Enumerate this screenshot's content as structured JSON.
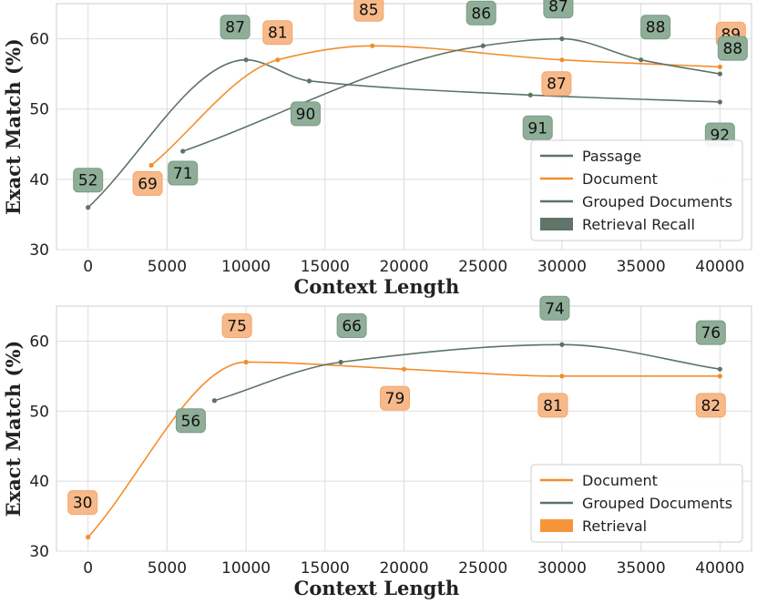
{
  "chart_data": [
    {
      "type": "line",
      "xlabel": "Context Length",
      "ylabel": "Exact Match (%)",
      "xlim": [
        -2000,
        42000
      ],
      "ylim": [
        30,
        65
      ],
      "xticks": [
        0,
        5000,
        10000,
        15000,
        20000,
        25000,
        30000,
        35000,
        40000
      ],
      "yticks": [
        30,
        40,
        50,
        60
      ],
      "grid": true,
      "legend_position": "bottom-right",
      "series": [
        {
          "name": "Passage",
          "color": "#5b7466",
          "x": [
            0,
            10000,
            14000,
            28000,
            40000
          ],
          "y": [
            36,
            57,
            54,
            52,
            51
          ],
          "recall": [
            52,
            87,
            90,
            91,
            92
          ]
        },
        {
          "name": "Document",
          "color": "#f28e2b",
          "x": [
            4000,
            12000,
            18000,
            30000,
            40000
          ],
          "y": [
            42,
            57,
            59,
            57,
            56
          ],
          "recall": [
            69,
            81,
            85,
            87,
            89
          ]
        },
        {
          "name": "Grouped Documents",
          "color": "#5b7466",
          "x": [
            6000,
            25000,
            30000,
            35000,
            40000
          ],
          "y": [
            44,
            59,
            60,
            57,
            55
          ],
          "recall": [
            71,
            86,
            87,
            88,
            88
          ]
        }
      ],
      "legend_patch": {
        "label": "Retrieval Recall",
        "color": "#607469"
      }
    },
    {
      "type": "line",
      "xlabel": "Context Length",
      "ylabel": "Exact Match (%)",
      "xlim": [
        -2000,
        42000
      ],
      "ylim": [
        30,
        65
      ],
      "xticks": [
        0,
        5000,
        10000,
        15000,
        20000,
        25000,
        30000,
        35000,
        40000
      ],
      "yticks": [
        30,
        40,
        50,
        60
      ],
      "grid": true,
      "legend_position": "bottom-right",
      "series": [
        {
          "name": "Document",
          "color": "#f28e2b",
          "x": [
            0,
            10000,
            20000,
            30000,
            40000
          ],
          "y": [
            32,
            57,
            56,
            55,
            55
          ],
          "recall": [
            30,
            75,
            79,
            81,
            82
          ]
        },
        {
          "name": "Grouped Documents",
          "color": "#5b7466",
          "x": [
            8000,
            16000,
            30000,
            40000
          ],
          "y": [
            51.5,
            57,
            59.5,
            56
          ],
          "recall": [
            56,
            66,
            74,
            76
          ]
        }
      ],
      "legend_patch": {
        "label": "Retrieval",
        "color": "#f7953a"
      }
    }
  ]
}
